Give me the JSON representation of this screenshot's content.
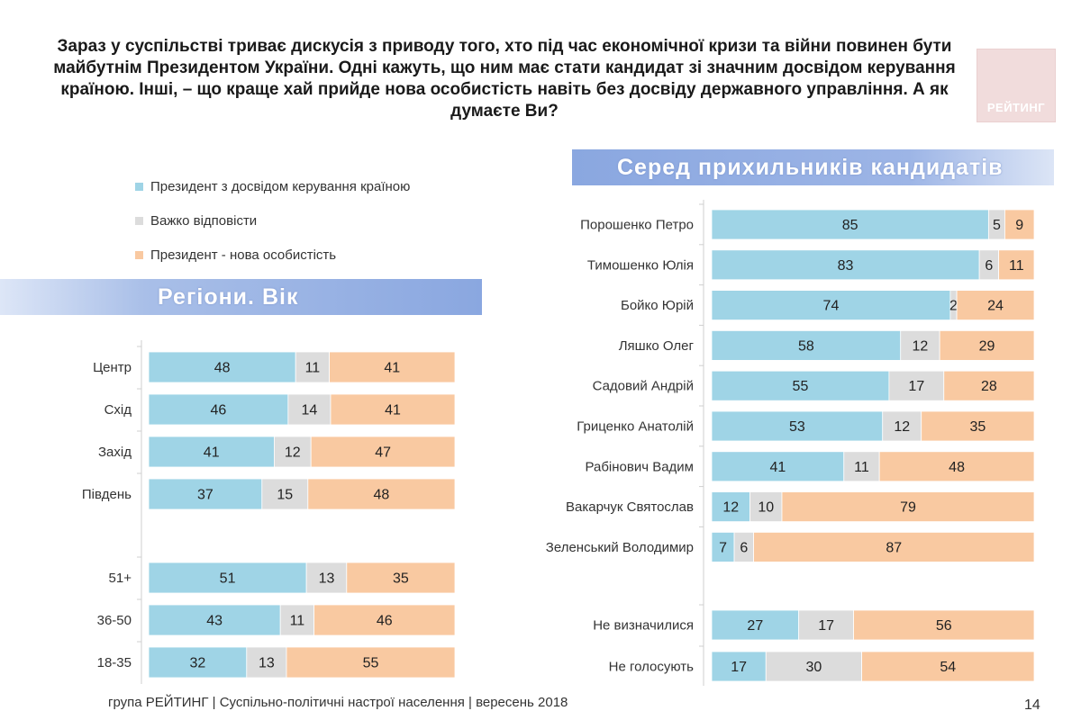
{
  "title": "Зараз у суспільстві триває дискусія з приводу того, хто під час економічної кризи та війни повинен бути майбутнім Президентом України. Одні кажуть, що ним має стати кандидат зі значним досвідом керування країною. Інші, – що краще хай прийде нова особистість навіть без досвіду державного управління. А як думаєте Ви?",
  "logo": "РЕЙТИНГ",
  "legend": [
    {
      "label": "Президент з досвідом керування країною",
      "color": "#9fd4e6"
    },
    {
      "label": "Важко відповісти",
      "color": "#dcdcdc"
    },
    {
      "label": "Президент - нова особистість",
      "color": "#f9c9a1"
    }
  ],
  "banner_left": "Регіони. Вік",
  "banner_right": "Серед прихильників кандидатів",
  "chart_data": [
    {
      "type": "bar",
      "orientation": "horizontal-stacked",
      "title": "Регіони. Вік",
      "series_names": [
        "Президент з досвідом керування країною",
        "Важко відповісти",
        "Президент - нова особистість"
      ],
      "groups": [
        {
          "categories": [
            "Центр",
            "Схід",
            "Захід",
            "Південь"
          ],
          "values": [
            [
              48,
              11,
              41
            ],
            [
              46,
              14,
              41
            ],
            [
              41,
              12,
              47
            ],
            [
              37,
              15,
              48
            ]
          ]
        },
        {
          "categories": [
            "51+",
            "36-50",
            "18-35"
          ],
          "values": [
            [
              51,
              13,
              35
            ],
            [
              43,
              11,
              46
            ],
            [
              32,
              13,
              55
            ]
          ]
        }
      ]
    },
    {
      "type": "bar",
      "orientation": "horizontal-stacked",
      "title": "Серед прихильників кандидатів",
      "series_names": [
        "Президент з досвідом керування країною",
        "Важко відповісти",
        "Президент - нова особистість"
      ],
      "groups": [
        {
          "categories": [
            "Порошенко Петро",
            "Тимошенко Юлія",
            "Бойко Юрій",
            "Ляшко Олег",
            "Садовий Андрій",
            "Гриценко Анатолій",
            "Рабінович Вадим",
            "Вакарчук Святослав",
            "Зеленський Володимир"
          ],
          "values": [
            [
              85,
              5,
              9
            ],
            [
              83,
              6,
              11
            ],
            [
              74,
              2,
              24
            ],
            [
              58,
              12,
              29
            ],
            [
              55,
              17,
              28
            ],
            [
              53,
              12,
              35
            ],
            [
              41,
              11,
              48
            ],
            [
              12,
              10,
              79
            ],
            [
              7,
              6,
              87
            ]
          ]
        },
        {
          "categories": [
            "Не визначилися",
            "Не голосують"
          ],
          "values": [
            [
              27,
              17,
              56
            ],
            [
              17,
              30,
              54
            ]
          ]
        }
      ]
    }
  ],
  "footer": "група РЕЙТИНГ |  Суспільно-політичні настрої населення | вересень  2018",
  "page_number": "14"
}
